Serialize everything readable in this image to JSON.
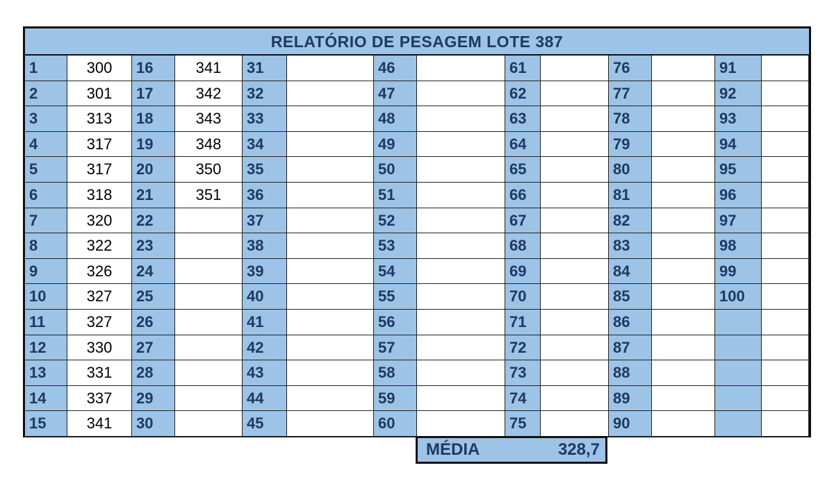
{
  "report": {
    "title": "RELATÓRIO DE PESAGEM LOTE 387",
    "columns": [
      {
        "numbers": [
          "1",
          "2",
          "3",
          "4",
          "5",
          "6",
          "7",
          "8",
          "9",
          "10",
          "11",
          "12",
          "13",
          "14",
          "15"
        ],
        "weights": [
          "300",
          "301",
          "313",
          "317",
          "317",
          "318",
          "320",
          "322",
          "326",
          "327",
          "327",
          "330",
          "331",
          "337",
          "341"
        ]
      },
      {
        "numbers": [
          "16",
          "17",
          "18",
          "19",
          "20",
          "21",
          "22",
          "23",
          "24",
          "25",
          "26",
          "27",
          "28",
          "29",
          "30"
        ],
        "weights": [
          "341",
          "342",
          "343",
          "348",
          "350",
          "351",
          "",
          "",
          "",
          "",
          "",
          "",
          "",
          "",
          ""
        ]
      },
      {
        "numbers": [
          "31",
          "32",
          "33",
          "34",
          "35",
          "36",
          "37",
          "38",
          "39",
          "40",
          "41",
          "42",
          "43",
          "44",
          "45"
        ],
        "weights": [
          "",
          "",
          "",
          "",
          "",
          "",
          "",
          "",
          "",
          "",
          "",
          "",
          "",
          "",
          ""
        ]
      },
      {
        "numbers": [
          "46",
          "47",
          "48",
          "49",
          "50",
          "51",
          "52",
          "53",
          "54",
          "55",
          "56",
          "57",
          "58",
          "59",
          "60"
        ],
        "weights": [
          "",
          "",
          "",
          "",
          "",
          "",
          "",
          "",
          "",
          "",
          "",
          "",
          "",
          "",
          ""
        ]
      },
      {
        "numbers": [
          "61",
          "62",
          "63",
          "64",
          "65",
          "66",
          "67",
          "68",
          "69",
          "70",
          "71",
          "72",
          "73",
          "74",
          "75"
        ],
        "weights": [
          "",
          "",
          "",
          "",
          "",
          "",
          "",
          "",
          "",
          "",
          "",
          "",
          "",
          "",
          ""
        ]
      },
      {
        "numbers": [
          "76",
          "77",
          "78",
          "79",
          "80",
          "81",
          "82",
          "83",
          "84",
          "85",
          "86",
          "87",
          "88",
          "89",
          "90"
        ],
        "weights": [
          "",
          "",
          "",
          "",
          "",
          "",
          "",
          "",
          "",
          "",
          "",
          "",
          "",
          "",
          ""
        ]
      },
      {
        "numbers": [
          "91",
          "92",
          "93",
          "94",
          "95",
          "96",
          "97",
          "98",
          "99",
          "100",
          "",
          "",
          "",
          "",
          ""
        ],
        "weights": [
          "",
          "",
          "",
          "",
          "",
          "",
          "",
          "",
          "",
          "",
          "",
          "",
          "",
          "",
          ""
        ]
      }
    ],
    "average_label": "MÉDIA",
    "average_value": "328,7"
  },
  "colors": {
    "header_fill": "#9dc3e6",
    "number_text": "#1f3864",
    "border": "#111111"
  }
}
